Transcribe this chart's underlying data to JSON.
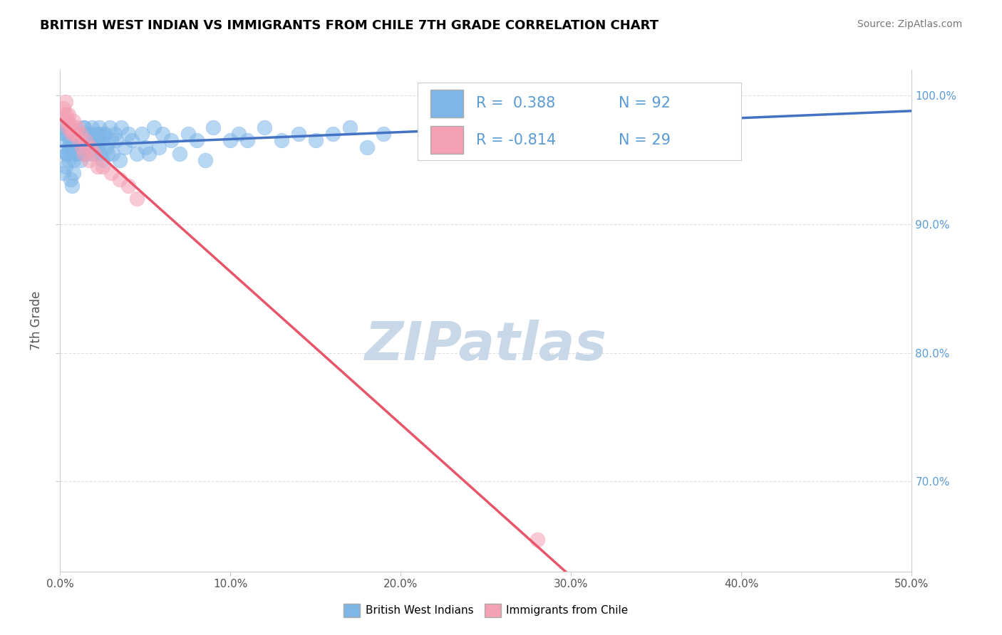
{
  "title": "BRITISH WEST INDIAN VS IMMIGRANTS FROM CHILE 7TH GRADE CORRELATION CHART",
  "source": "Source: ZipAtlas.com",
  "ylabel": "7th Grade",
  "xlim": [
    0.0,
    50.0
  ],
  "ylim": [
    63.0,
    102.0
  ],
  "xticks": [
    0.0,
    10.0,
    20.0,
    30.0,
    40.0,
    50.0
  ],
  "yticks": [
    70.0,
    80.0,
    90.0,
    100.0
  ],
  "right_ytick_labels": [
    "100.0%",
    "90.0%",
    "80.0%",
    "70.0%"
  ],
  "right_yticks": [
    100.0,
    90.0,
    80.0,
    70.0
  ],
  "xtick_labels": [
    "0.0%",
    "10.0%",
    "20.0%",
    "30.0%",
    "40.0%",
    "50.0%"
  ],
  "blue_r": 0.388,
  "blue_n": 92,
  "pink_r": -0.814,
  "pink_n": 29,
  "blue_color": "#7EB6E8",
  "pink_color": "#F4A0B5",
  "blue_line_color": "#4472C4",
  "pink_line_color": "#E8546A",
  "watermark": "ZIPatlas",
  "watermark_color": "#C8D8E8",
  "legend_label_blue": "British West Indians",
  "legend_label_pink": "Immigrants from Chile",
  "background_color": "#FFFFFF",
  "grid_color": "#E0E0E0",
  "title_color": "#000000",
  "right_axis_color": "#5B9BD5",
  "blue_x": [
    0.15,
    0.2,
    0.25,
    0.3,
    0.35,
    0.4,
    0.45,
    0.5,
    0.55,
    0.6,
    0.65,
    0.7,
    0.75,
    0.8,
    0.85,
    0.9,
    0.95,
    1.0,
    1.05,
    1.1,
    1.15,
    1.2,
    1.25,
    1.3,
    1.35,
    1.4,
    1.45,
    1.5,
    1.55,
    1.6,
    1.65,
    1.7,
    1.75,
    1.8,
    1.85,
    1.9,
    1.95,
    2.0,
    2.05,
    2.1,
    2.15,
    2.2,
    2.25,
    2.3,
    2.35,
    2.4,
    2.5,
    2.55,
    2.6,
    2.7,
    2.8,
    2.9,
    3.0,
    3.1,
    3.2,
    3.3,
    3.5,
    3.6,
    3.8,
    4.0,
    4.2,
    4.5,
    4.8,
    5.0,
    5.2,
    5.5,
    5.8,
    6.0,
    6.5,
    7.0,
    7.5,
    8.0,
    8.5,
    9.0,
    10.0,
    10.5,
    11.0,
    12.0,
    13.0,
    14.0,
    15.0,
    16.0,
    17.0,
    18.0,
    19.0,
    0.3,
    0.5,
    0.2,
    0.4,
    0.6,
    0.7,
    0.8
  ],
  "blue_y": [
    97.5,
    96.5,
    97.0,
    97.0,
    95.5,
    95.5,
    97.5,
    96.0,
    96.5,
    97.5,
    96.0,
    96.0,
    97.0,
    95.0,
    96.5,
    95.5,
    95.5,
    97.0,
    97.0,
    96.5,
    96.0,
    95.0,
    96.5,
    96.0,
    97.5,
    97.5,
    95.5,
    95.5,
    96.0,
    96.5,
    97.0,
    97.0,
    96.5,
    96.0,
    97.5,
    95.5,
    96.0,
    96.5,
    96.0,
    97.0,
    96.5,
    96.0,
    97.0,
    97.5,
    95.5,
    96.5,
    95.0,
    97.0,
    97.0,
    96.0,
    95.5,
    97.5,
    96.5,
    95.5,
    97.0,
    96.5,
    95.0,
    97.5,
    96.0,
    97.0,
    96.5,
    95.5,
    97.0,
    96.0,
    95.5,
    97.5,
    96.0,
    97.0,
    96.5,
    95.5,
    97.0,
    96.5,
    95.0,
    97.5,
    96.5,
    97.0,
    96.5,
    97.5,
    96.5,
    97.0,
    96.5,
    97.0,
    97.5,
    96.0,
    97.0,
    94.5,
    95.0,
    94.0,
    95.5,
    93.5,
    93.0,
    94.0
  ],
  "pink_x": [
    0.2,
    0.25,
    0.3,
    0.35,
    0.4,
    0.45,
    0.5,
    0.55,
    0.6,
    0.7,
    0.75,
    0.8,
    0.9,
    1.0,
    1.1,
    1.2,
    1.3,
    1.4,
    1.5,
    1.7,
    1.8,
    2.0,
    2.2,
    2.5,
    3.0,
    3.5,
    4.0,
    4.5,
    28.0
  ],
  "pink_y": [
    99.0,
    98.5,
    99.5,
    98.5,
    98.0,
    97.5,
    98.5,
    97.8,
    97.5,
    97.0,
    97.2,
    98.0,
    97.0,
    97.5,
    96.5,
    97.0,
    96.0,
    95.5,
    96.5,
    95.0,
    96.0,
    95.5,
    94.5,
    94.5,
    94.0,
    93.5,
    93.0,
    92.0,
    65.5
  ]
}
